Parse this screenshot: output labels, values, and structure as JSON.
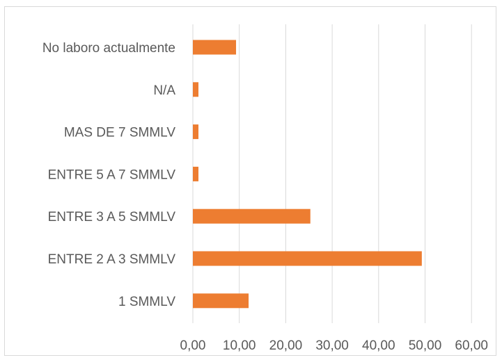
{
  "chart_data": {
    "type": "bar",
    "orientation": "horizontal",
    "categories": [
      "No laboro actualmente",
      "N/A",
      "MAS  DE 7 SMMLV",
      "ENTRE 5 A 7  SMMLV",
      "ENTRE 3 A 5  SMMLV",
      "ENTRE 2 A 3  SMMLV",
      "1 SMMLV"
    ],
    "values": [
      9.3,
      1.2,
      1.2,
      1.2,
      25.3,
      49.3,
      12.0
    ],
    "xlim": [
      0,
      60
    ],
    "ticks": [
      "0,00",
      "10,00",
      "20,00",
      "30,00",
      "40,00",
      "50,00",
      "60,00"
    ],
    "tick_values": [
      0,
      10,
      20,
      30,
      40,
      50,
      60
    ],
    "grid": true,
    "bar_color": "#ed7d31",
    "grid_color": "#d9d9d9",
    "title": "",
    "xlabel": "",
    "ylabel": ""
  }
}
